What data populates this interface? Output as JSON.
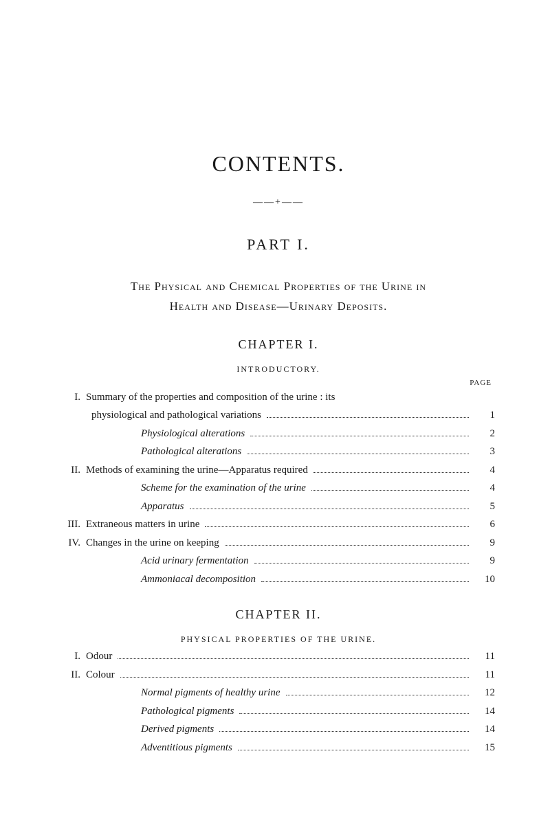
{
  "title": "CONTENTS.",
  "ornament": "——+——",
  "part": "PART I.",
  "section_line1": "The Physical and Chemical Properties of the Urine in",
  "section_line2": "Health and Disease—Urinary Deposits.",
  "page_label": "PAGE",
  "chapter1": {
    "heading": "CHAPTER I.",
    "subtitle": "INTRODUCTORY.",
    "entries": [
      {
        "roman": "I.",
        "text": "Summary of the properties and composition of the urine : its",
        "page": ""
      },
      {
        "roman": "",
        "text": "physiological and pathological variations",
        "page": "1",
        "cont": true
      },
      {
        "roman": "",
        "text": "Physiological alterations",
        "page": "2",
        "italic": true,
        "indent": 2
      },
      {
        "roman": "",
        "text": "Pathological alterations",
        "page": "3",
        "italic": true,
        "indent": 2
      },
      {
        "roman": "II.",
        "text": "Methods of examining the urine—Apparatus required",
        "page": "4"
      },
      {
        "roman": "",
        "text": "Scheme for the examination of the urine",
        "page": "4",
        "italic": true,
        "indent": 2
      },
      {
        "roman": "",
        "text": "Apparatus",
        "page": "5",
        "italic": true,
        "indent": 2
      },
      {
        "roman": "III.",
        "text": "Extraneous matters in urine",
        "page": "6"
      },
      {
        "roman": "IV.",
        "text": "Changes in the urine on keeping",
        "page": "9"
      },
      {
        "roman": "",
        "text": "Acid urinary fermentation",
        "page": "9",
        "italic": true,
        "indent": 2
      },
      {
        "roman": "",
        "text": "Ammoniacal decomposition",
        "page": "10",
        "italic": true,
        "indent": 2
      }
    ]
  },
  "chapter2": {
    "heading": "CHAPTER II.",
    "subtitle": "PHYSICAL PROPERTIES OF THE URINE.",
    "entries": [
      {
        "roman": "I.",
        "text": "Odour",
        "page": "11"
      },
      {
        "roman": "II.",
        "text": "Colour",
        "page": "11"
      },
      {
        "roman": "",
        "text": "Normal pigments of healthy urine",
        "page": "12",
        "italic": true,
        "indent": 2
      },
      {
        "roman": "",
        "text": "Pathological pigments",
        "page": "14",
        "italic": true,
        "indent": 2
      },
      {
        "roman": "",
        "text": "Derived pigments",
        "page": "14",
        "italic": true,
        "indent": 2
      },
      {
        "roman": "",
        "text": "Adventitious pigments",
        "page": "15",
        "italic": true,
        "indent": 2
      }
    ]
  }
}
